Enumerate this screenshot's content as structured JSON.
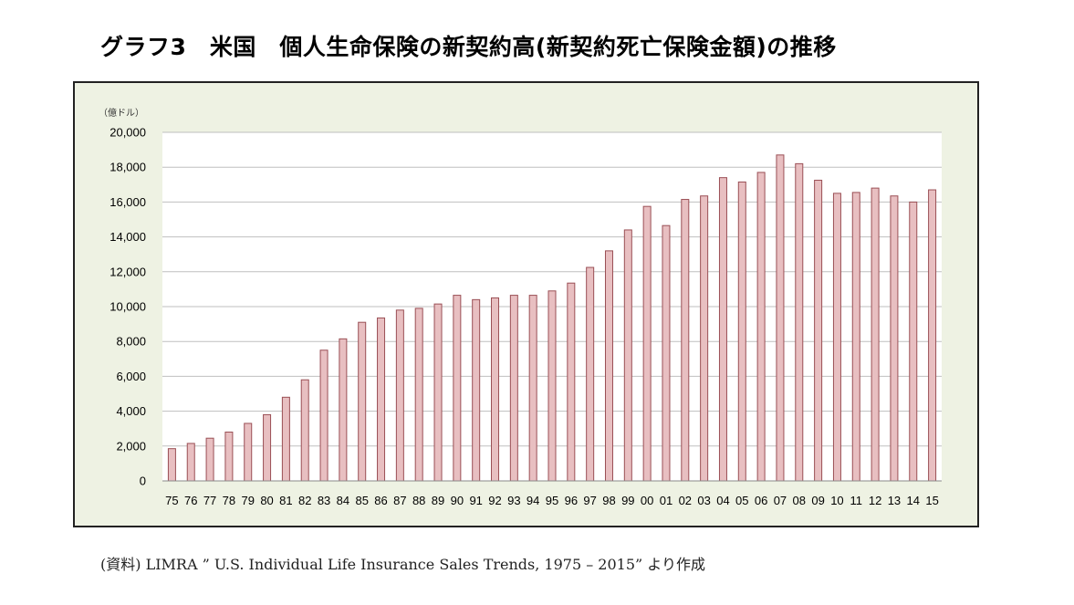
{
  "title": "グラフ3　米国　個人生命保険の新契約高(新契約死亡保険金額)の推移",
  "source": "(資料) LIMRA ” U.S. Individual Life Insurance Sales Trends, 1975 – 2015” より作成",
  "colors": {
    "bar_fill": "#e8bfc1",
    "bar_stroke": "#9a4f55",
    "plot_bg": "#ffffff",
    "frame_bg": "#eef2e3",
    "grid": "#bfbfbf"
  },
  "chart_data": {
    "type": "bar",
    "ylabel": "（億ドル）",
    "ylim": [
      0,
      20000
    ],
    "yticks": [
      0,
      2000,
      4000,
      6000,
      8000,
      10000,
      12000,
      14000,
      16000,
      18000,
      20000
    ],
    "ytick_labels": [
      "0",
      "2,000",
      "4,000",
      "6,000",
      "8,000",
      "10,000",
      "12,000",
      "14,000",
      "16,000",
      "18,000",
      "20,000"
    ],
    "grid": true,
    "legend": "none",
    "categories": [
      "75",
      "76",
      "77",
      "78",
      "79",
      "80",
      "81",
      "82",
      "83",
      "84",
      "85",
      "86",
      "87",
      "88",
      "89",
      "90",
      "91",
      "92",
      "93",
      "94",
      "95",
      "96",
      "97",
      "98",
      "99",
      "00",
      "01",
      "02",
      "03",
      "04",
      "05",
      "06",
      "07",
      "08",
      "09",
      "10",
      "11",
      "12",
      "13",
      "14",
      "15"
    ],
    "values": [
      1850,
      2150,
      2450,
      2800,
      3300,
      3800,
      4800,
      5800,
      7500,
      8150,
      9100,
      9350,
      9800,
      9900,
      10150,
      10650,
      10400,
      10500,
      10650,
      10650,
      10900,
      11350,
      12250,
      13200,
      14400,
      15750,
      14650,
      16150,
      16350,
      17400,
      17150,
      17700,
      18700,
      18200,
      17250,
      16500,
      16550,
      16800,
      16350,
      16000,
      16700
    ]
  }
}
